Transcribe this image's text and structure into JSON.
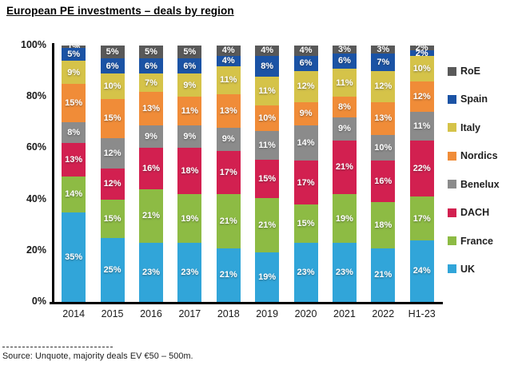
{
  "title": "European PE investments – deals by region",
  "source": "Source:  Unquote, majority deals EV €50 – 500m.",
  "chart_data": {
    "type": "bar",
    "stacked": true,
    "normalized_to_100_percent": true,
    "title": "European PE investments – deals by region",
    "categories": [
      "2014",
      "2015",
      "2016",
      "2017",
      "2018",
      "2019",
      "2020",
      "2021",
      "2022",
      "H1-23"
    ],
    "series": [
      {
        "name": "UK",
        "color": "#31A5D9",
        "values": [
          35,
          25,
          23,
          23,
          21,
          19,
          23,
          23,
          21,
          24
        ]
      },
      {
        "name": "France",
        "color": "#8DBB44",
        "values": [
          14,
          15,
          21,
          19,
          21,
          21,
          15,
          19,
          18,
          17
        ]
      },
      {
        "name": "DACH",
        "color": "#D22050",
        "values": [
          13,
          12,
          16,
          18,
          17,
          15,
          17,
          21,
          16,
          22
        ]
      },
      {
        "name": "Benelux",
        "color": "#8B8B8B",
        "values": [
          8,
          12,
          9,
          9,
          9,
          11,
          14,
          9,
          10,
          11
        ]
      },
      {
        "name": "Nordics",
        "color": "#F08C38",
        "values": [
          15,
          15,
          13,
          11,
          13,
          10,
          9,
          8,
          13,
          12
        ]
      },
      {
        "name": "Italy",
        "color": "#D5C349",
        "values": [
          9,
          10,
          7,
          9,
          11,
          11,
          12,
          11,
          12,
          10
        ]
      },
      {
        "name": "Spain",
        "color": "#1B53A5",
        "values": [
          5,
          6,
          6,
          6,
          4,
          8,
          6,
          6,
          7,
          2
        ]
      },
      {
        "name": "RoE",
        "color": "#595959",
        "values": [
          1,
          5,
          5,
          5,
          4,
          4,
          4,
          3,
          3,
          2
        ]
      }
    ],
    "stack_order": "bottom_to_top",
    "legend_order_top_to_bottom": [
      "RoE",
      "Spain",
      "Italy",
      "Nordics",
      "Benelux",
      "DACH",
      "France",
      "UK"
    ],
    "legend_position": "right",
    "data_label_format": "{value}%",
    "yticks": [
      0,
      20,
      40,
      60,
      80,
      100
    ],
    "ytick_format": "{value}%",
    "ylim": [
      0,
      100
    ],
    "grid": false
  }
}
